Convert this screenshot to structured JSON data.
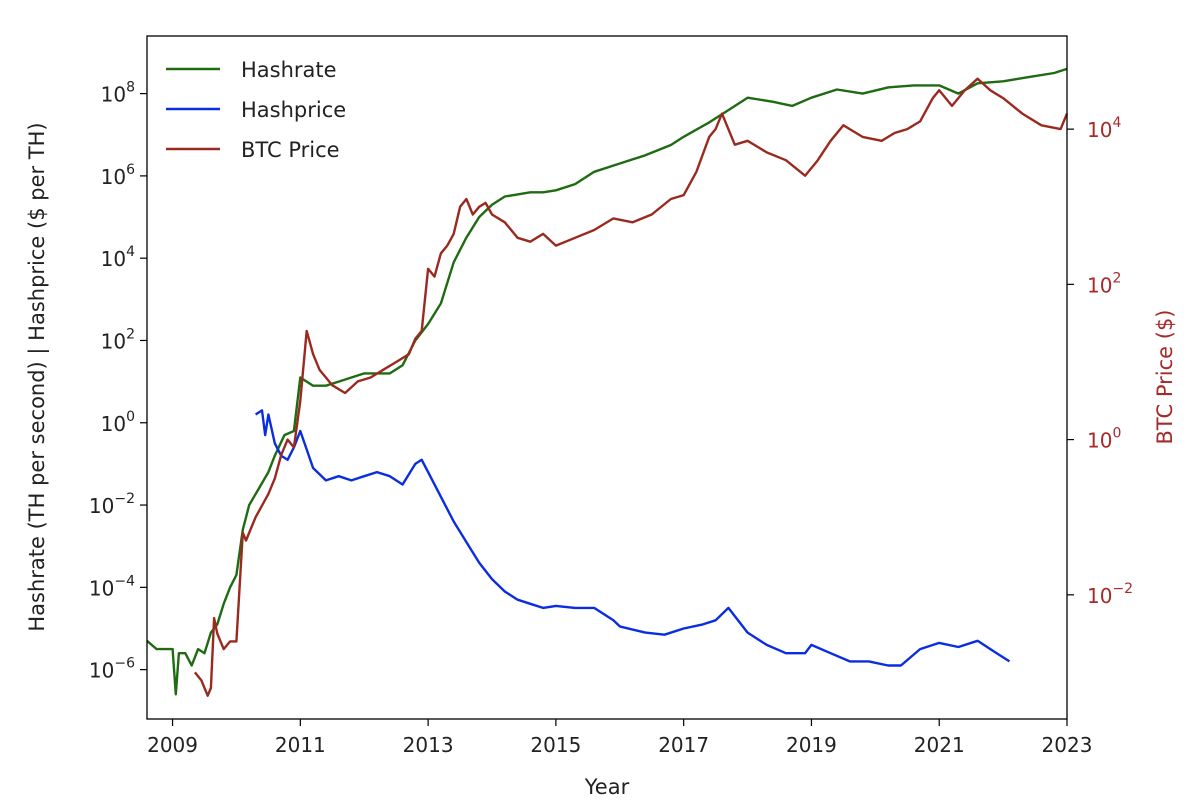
{
  "chart_data": {
    "type": "line",
    "xlabel": "Year",
    "ylabel_left": "Hashrate (TH per second) | Hashprice ($ per TH)",
    "ylabel_right": "BTC Price ($)",
    "x_range": [
      2008.6,
      2023.0
    ],
    "x_ticks": [
      "2009",
      "2011",
      "2013",
      "2015",
      "2017",
      "2019",
      "2021",
      "2023"
    ],
    "x_tick_values": [
      2009,
      2011,
      2013,
      2015,
      2017,
      2019,
      2021,
      2023
    ],
    "y_left_scale": "log",
    "y_left_range_exp": [
      -7.2,
      9.4
    ],
    "y_left_ticks": [
      {
        "exp": 8,
        "base": "10",
        "pow": "8"
      },
      {
        "exp": 6,
        "base": "10",
        "pow": "6"
      },
      {
        "exp": 4,
        "base": "10",
        "pow": "4"
      },
      {
        "exp": 2,
        "base": "10",
        "pow": "2"
      },
      {
        "exp": 0,
        "base": "10",
        "pow": "0"
      },
      {
        "exp": -2,
        "base": "10",
        "pow": "−2"
      },
      {
        "exp": -4,
        "base": "10",
        "pow": "−4"
      },
      {
        "exp": -6,
        "base": "10",
        "pow": "−6"
      }
    ],
    "y_right_scale": "log",
    "y_right_range_exp": [
      -3.6,
      5.2
    ],
    "y_right_ticks": [
      {
        "exp": 4,
        "base": "10",
        "pow": "4"
      },
      {
        "exp": 2,
        "base": "10",
        "pow": "2"
      },
      {
        "exp": 0,
        "base": "10",
        "pow": "0"
      },
      {
        "exp": -2,
        "base": "10",
        "pow": "−2"
      }
    ],
    "legend_position": "top-left",
    "grid": false,
    "series": [
      {
        "name": "Hashrate",
        "axis": "left",
        "color": "#1e6b12",
        "x": [
          2008.6,
          2008.75,
          2008.9,
          2009.0,
          2009.05,
          2009.1,
          2009.2,
          2009.3,
          2009.4,
          2009.5,
          2009.6,
          2009.7,
          2009.8,
          2009.9,
          2010.0,
          2010.1,
          2010.2,
          2010.35,
          2010.5,
          2010.6,
          2010.75,
          2010.9,
          2011.0,
          2011.2,
          2011.4,
          2011.6,
          2011.8,
          2012.0,
          2012.2,
          2012.4,
          2012.6,
          2012.8,
          2013.0,
          2013.2,
          2013.4,
          2013.6,
          2013.8,
          2014.0,
          2014.2,
          2014.4,
          2014.6,
          2014.8,
          2015.0,
          2015.3,
          2015.6,
          2016.0,
          2016.4,
          2016.8,
          2017.0,
          2017.4,
          2017.7,
          2018.0,
          2018.4,
          2018.7,
          2019.0,
          2019.4,
          2019.8,
          2020.2,
          2020.6,
          2021.0,
          2021.3,
          2021.6,
          2022.0,
          2022.4,
          2022.8,
          2023.0
        ],
        "y_exp": [
          -5.3,
          -5.5,
          -5.5,
          -5.5,
          -6.6,
          -5.6,
          -5.6,
          -5.9,
          -5.5,
          -5.6,
          -5.1,
          -4.9,
          -4.4,
          -4.0,
          -3.7,
          -2.6,
          -2.0,
          -1.6,
          -1.2,
          -0.8,
          -0.3,
          -0.2,
          1.1,
          0.9,
          0.9,
          1.0,
          1.1,
          1.2,
          1.2,
          1.2,
          1.4,
          2.0,
          2.4,
          2.9,
          3.9,
          4.5,
          5.0,
          5.3,
          5.5,
          5.55,
          5.6,
          5.6,
          5.65,
          5.8,
          6.1,
          6.3,
          6.5,
          6.75,
          6.95,
          7.3,
          7.6,
          7.9,
          7.8,
          7.7,
          7.9,
          8.1,
          8.0,
          8.15,
          8.2,
          8.2,
          8.0,
          8.25,
          8.3,
          8.4,
          8.5,
          8.6
        ]
      },
      {
        "name": "Hashprice",
        "axis": "left",
        "color": "#0a2de0",
        "x": [
          2010.3,
          2010.4,
          2010.45,
          2010.5,
          2010.6,
          2010.7,
          2010.8,
          2010.9,
          2011.0,
          2011.2,
          2011.4,
          2011.6,
          2011.8,
          2012.0,
          2012.2,
          2012.4,
          2012.6,
          2012.8,
          2012.9,
          2013.0,
          2013.2,
          2013.4,
          2013.6,
          2013.8,
          2014.0,
          2014.2,
          2014.4,
          2014.6,
          2014.8,
          2015.0,
          2015.3,
          2015.6,
          2015.9,
          2016.0,
          2016.4,
          2016.7,
          2017.0,
          2017.3,
          2017.5,
          2017.7,
          2018.0,
          2018.3,
          2018.6,
          2018.9,
          2019.0,
          2019.3,
          2019.6,
          2019.9,
          2020.2,
          2020.4,
          2020.7,
          2021.0,
          2021.3,
          2021.6,
          2021.9,
          2022.1
        ],
        "y_exp": [
          0.2,
          0.3,
          -0.3,
          0.2,
          -0.5,
          -0.8,
          -0.9,
          -0.6,
          -0.2,
          -1.1,
          -1.4,
          -1.3,
          -1.4,
          -1.3,
          -1.2,
          -1.3,
          -1.5,
          -1.0,
          -0.9,
          -1.2,
          -1.8,
          -2.4,
          -2.9,
          -3.4,
          -3.8,
          -4.1,
          -4.3,
          -4.4,
          -4.5,
          -4.45,
          -4.5,
          -4.5,
          -4.8,
          -4.95,
          -5.1,
          -5.15,
          -5.0,
          -4.9,
          -4.8,
          -4.5,
          -5.1,
          -5.4,
          -5.6,
          -5.6,
          -5.4,
          -5.6,
          -5.8,
          -5.8,
          -5.9,
          -5.9,
          -5.5,
          -5.35,
          -5.45,
          -5.3,
          -5.6,
          -5.8
        ]
      },
      {
        "name": "BTC Price",
        "axis": "right",
        "color": "#9a2a20",
        "x": [
          2009.35,
          2009.45,
          2009.5,
          2009.55,
          2009.6,
          2009.65,
          2009.7,
          2009.8,
          2009.9,
          2010.0,
          2010.1,
          2010.15,
          2010.3,
          2010.5,
          2010.6,
          2010.7,
          2010.8,
          2010.9,
          2011.0,
          2011.1,
          2011.2,
          2011.3,
          2011.5,
          2011.7,
          2011.9,
          2012.1,
          2012.3,
          2012.5,
          2012.7,
          2012.8,
          2012.9,
          2013.0,
          2013.1,
          2013.2,
          2013.3,
          2013.4,
          2013.5,
          2013.6,
          2013.7,
          2013.8,
          2013.9,
          2014.0,
          2014.2,
          2014.4,
          2014.6,
          2014.8,
          2015.0,
          2015.3,
          2015.6,
          2015.9,
          2016.2,
          2016.5,
          2016.8,
          2017.0,
          2017.2,
          2017.4,
          2017.5,
          2017.6,
          2017.8,
          2018.0,
          2018.3,
          2018.6,
          2018.9,
          2019.1,
          2019.3,
          2019.5,
          2019.8,
          2020.1,
          2020.3,
          2020.5,
          2020.7,
          2020.9,
          2021.0,
          2021.2,
          2021.4,
          2021.6,
          2021.8,
          2022.0,
          2022.3,
          2022.6,
          2022.9,
          2023.0
        ],
        "y_exp": [
          -3.0,
          -3.1,
          -3.2,
          -3.3,
          -3.2,
          -2.3,
          -2.5,
          -2.7,
          -2.6,
          -2.6,
          -1.2,
          -1.3,
          -1.0,
          -0.7,
          -0.5,
          -0.2,
          0.0,
          -0.1,
          0.5,
          1.4,
          1.1,
          0.9,
          0.7,
          0.6,
          0.75,
          0.8,
          0.9,
          1.0,
          1.1,
          1.3,
          1.4,
          2.2,
          2.1,
          2.4,
          2.5,
          2.65,
          3.0,
          3.1,
          2.9,
          3.0,
          3.05,
          2.9,
          2.8,
          2.6,
          2.55,
          2.65,
          2.5,
          2.6,
          2.7,
          2.85,
          2.8,
          2.9,
          3.1,
          3.15,
          3.45,
          3.9,
          4.0,
          4.2,
          3.8,
          3.85,
          3.7,
          3.6,
          3.4,
          3.6,
          3.85,
          4.05,
          3.9,
          3.85,
          3.95,
          4.0,
          4.1,
          4.4,
          4.5,
          4.3,
          4.5,
          4.65,
          4.5,
          4.4,
          4.2,
          4.05,
          4.0,
          4.2
        ]
      }
    ]
  }
}
